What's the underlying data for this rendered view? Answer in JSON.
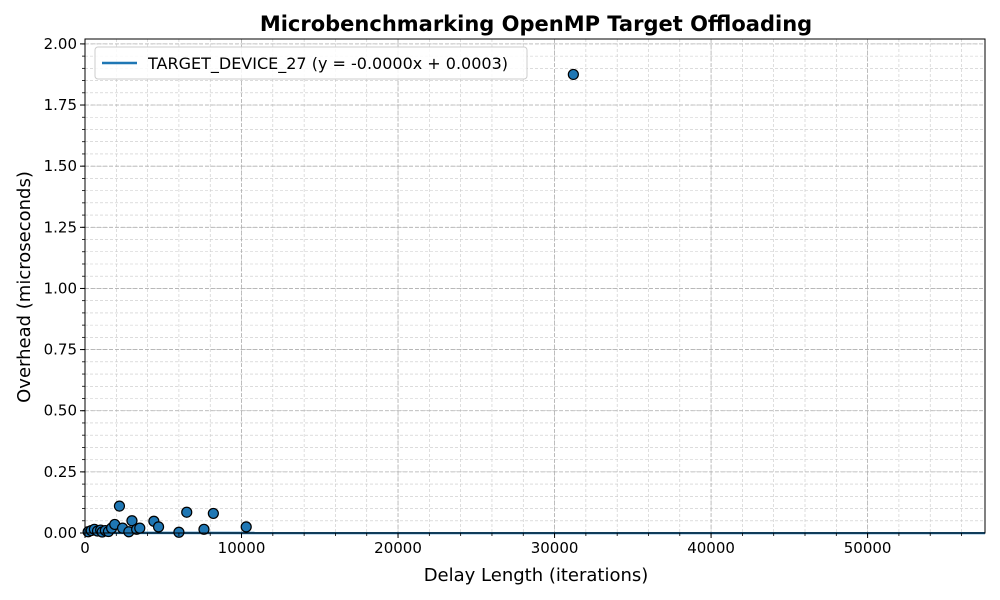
{
  "chart_data": {
    "type": "scatter",
    "title": "Microbenchmarking OpenMP Target Offloading",
    "xlabel": "Delay Length (iterations)",
    "ylabel": "Overhead (microseconds)",
    "xlim": [
      0,
      57500
    ],
    "ylim": [
      0,
      2.02
    ],
    "x_ticks": [
      0,
      10000,
      20000,
      30000,
      40000,
      50000
    ],
    "y_ticks": [
      0.0,
      0.25,
      0.5,
      0.75,
      1.0,
      1.25,
      1.5,
      1.75,
      2.0
    ],
    "x_tick_labels": [
      "0",
      "10000",
      "20000",
      "30000",
      "40000",
      "50000"
    ],
    "y_tick_labels": [
      "0.00",
      "0.25",
      "0.50",
      "0.75",
      "1.00",
      "1.25",
      "1.50",
      "1.75",
      "2.00"
    ],
    "grid": true,
    "legend_position": "top-left",
    "series": [
      {
        "name": "TARGET_DEVICE_27 (y = -0.0000x + 0.0003)",
        "color": "#1f77b4",
        "points": [
          {
            "x": 200,
            "y": 0.005
          },
          {
            "x": 400,
            "y": 0.01
          },
          {
            "x": 600,
            "y": 0.015
          },
          {
            "x": 800,
            "y": 0.008
          },
          {
            "x": 1000,
            "y": 0.012
          },
          {
            "x": 1100,
            "y": 0.004
          },
          {
            "x": 1300,
            "y": 0.01
          },
          {
            "x": 1500,
            "y": 0.006
          },
          {
            "x": 1700,
            "y": 0.02
          },
          {
            "x": 1900,
            "y": 0.035
          },
          {
            "x": 2200,
            "y": 0.11
          },
          {
            "x": 2400,
            "y": 0.02
          },
          {
            "x": 2800,
            "y": 0.005
          },
          {
            "x": 3000,
            "y": 0.05
          },
          {
            "x": 3300,
            "y": 0.015
          },
          {
            "x": 3500,
            "y": 0.02
          },
          {
            "x": 4400,
            "y": 0.048
          },
          {
            "x": 4700,
            "y": 0.025
          },
          {
            "x": 6000,
            "y": 0.003
          },
          {
            "x": 6500,
            "y": 0.085
          },
          {
            "x": 7600,
            "y": 0.015
          },
          {
            "x": 8200,
            "y": 0.08
          },
          {
            "x": 10300,
            "y": 0.025
          },
          {
            "x": 31200,
            "y": 1.875
          }
        ],
        "fit_line": {
          "x": [
            0,
            57500
          ],
          "y": [
            0.0003,
            -0.0005
          ]
        }
      }
    ]
  }
}
